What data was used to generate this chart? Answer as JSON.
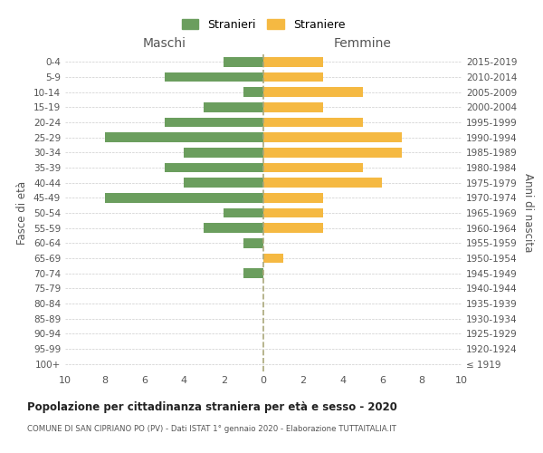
{
  "age_groups": [
    "100+",
    "95-99",
    "90-94",
    "85-89",
    "80-84",
    "75-79",
    "70-74",
    "65-69",
    "60-64",
    "55-59",
    "50-54",
    "45-49",
    "40-44",
    "35-39",
    "30-34",
    "25-29",
    "20-24",
    "15-19",
    "10-14",
    "5-9",
    "0-4"
  ],
  "birth_years": [
    "≤ 1919",
    "1920-1924",
    "1925-1929",
    "1930-1934",
    "1935-1939",
    "1940-1944",
    "1945-1949",
    "1950-1954",
    "1955-1959",
    "1960-1964",
    "1965-1969",
    "1970-1974",
    "1975-1979",
    "1980-1984",
    "1985-1989",
    "1990-1994",
    "1995-1999",
    "2000-2004",
    "2005-2009",
    "2010-2014",
    "2015-2019"
  ],
  "maschi": [
    0,
    0,
    0,
    0,
    0,
    0,
    1,
    0,
    1,
    3,
    2,
    8,
    4,
    5,
    4,
    8,
    5,
    3,
    1,
    5,
    2
  ],
  "femmine": [
    0,
    0,
    0,
    0,
    0,
    0,
    0,
    1,
    0,
    3,
    3,
    3,
    6,
    5,
    7,
    7,
    5,
    3,
    5,
    3,
    3
  ],
  "color_maschi": "#6b9e5e",
  "color_femmine": "#f5b942",
  "title_main": "Popolazione per cittadinanza straniera per età e sesso - 2020",
  "title_sub": "COMUNE DI SAN CIPRIANO PO (PV) - Dati ISTAT 1° gennaio 2020 - Elaborazione TUTTAITALIA.IT",
  "label_maschi": "Stranieri",
  "label_femmine": "Straniere",
  "xlabel_left": "Maschi",
  "xlabel_right": "Femmine",
  "ylabel_left": "Fasce di età",
  "ylabel_right": "Anni di nascita",
  "xlim": 10,
  "bg_color": "#ffffff",
  "grid_color": "#cccccc",
  "tick_color": "#999999",
  "label_color": "#555555"
}
